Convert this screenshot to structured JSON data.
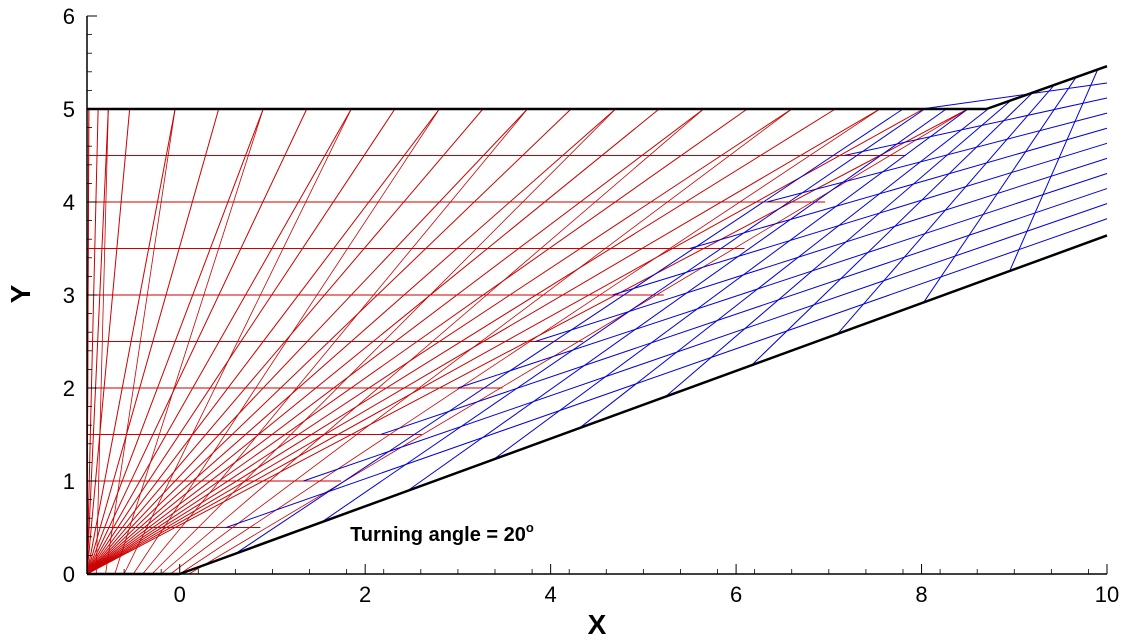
{
  "chart_data": {
    "type": "line",
    "title": "",
    "xlabel": "X",
    "ylabel": "Y",
    "xlim": [
      -1,
      10
    ],
    "ylim": [
      0,
      6
    ],
    "xticks": [
      "0",
      "2",
      "4",
      "6",
      "8",
      "10"
    ],
    "yticks": [
      "0",
      "1",
      "2",
      "3",
      "4",
      "5",
      "6"
    ],
    "grid": false,
    "annotation": {
      "prefix": "Turning angle = ",
      "value": "20",
      "unit_symbol": "o",
      "x": 2.7,
      "y": 0.4
    },
    "turning_angle_deg": 20,
    "colors": {
      "boundary": "#000000",
      "expansion_fan": "#cc0000",
      "reflected_waves": "#0000dd"
    },
    "boundaries": [
      {
        "name": "upper-wall",
        "points": [
          [
            -1,
            5
          ],
          [
            8.7,
            5
          ],
          [
            10,
            5.46
          ]
        ]
      },
      {
        "name": "lower-wall",
        "points": [
          [
            -1,
            0
          ],
          [
            0,
            0
          ],
          [
            10,
            3.64
          ]
        ]
      }
    ],
    "horizontal_lines": {
      "y_values": [
        0.5,
        1.0,
        1.5,
        2.0,
        2.5,
        3.0,
        3.5,
        4.0,
        4.5
      ],
      "x_start": -1,
      "x_end": [
        0.87,
        1.74,
        2.61,
        3.48,
        4.35,
        5.22,
        6.09,
        6.96,
        7.83
      ]
    },
    "fan_rays": {
      "origin": [
        0,
        0
      ],
      "x_at_top": [
        -0.98,
        -0.88,
        -0.77,
        -0.54,
        -0.05,
        0.42,
        0.9,
        1.37,
        1.85,
        2.32,
        2.8,
        3.27,
        3.75,
        4.22,
        4.7,
        5.17,
        5.65,
        6.12,
        6.6,
        7.07,
        7.55,
        8.02,
        8.5
      ],
      "x_at_bottom": -1,
      "top_y": 5
    },
    "blue_families": {
      "descending_count": 10,
      "ascending_count": 10,
      "descending_start_x": 0.6,
      "descending_end_x": 8.95,
      "descending_top_x": 9.9,
      "ascending_end_y_min": 3.82,
      "ascending_end_y_max": 5.28
    }
  }
}
